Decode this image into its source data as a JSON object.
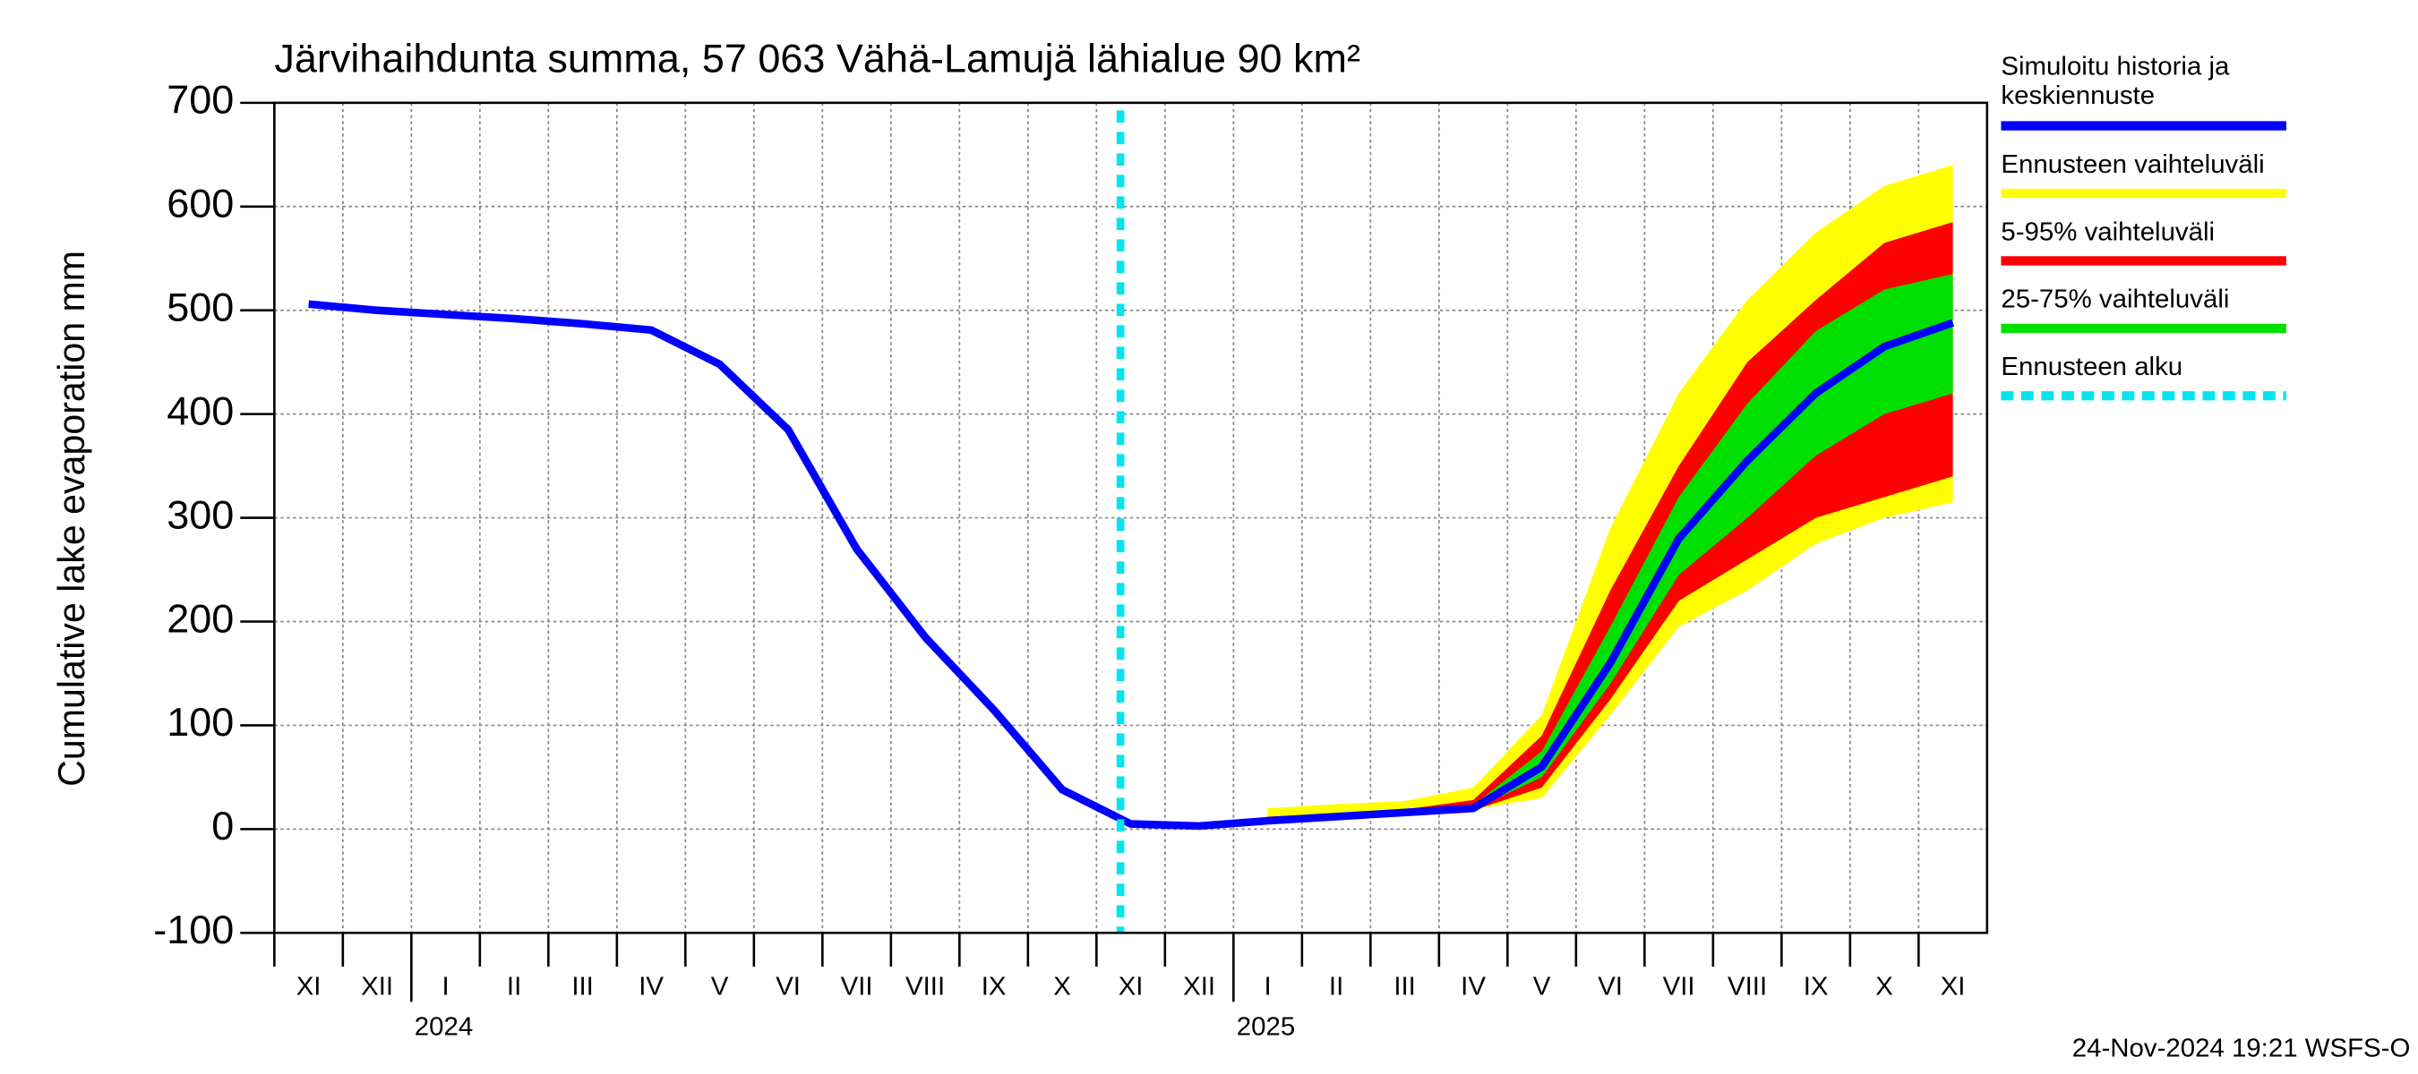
{
  "chart_data": {
    "type": "line",
    "title": "Järvihaihdunta summa, 57 063 Vähä-Lamujä lähialue 90 km²",
    "y_label": "Cumulative lake evaporation   mm",
    "footer": "24-Nov-2024 19:21 WSFS-O",
    "categories": [
      "XI",
      "XII",
      "I",
      "II",
      "III",
      "IV",
      "V",
      "VI",
      "VII",
      "VIII",
      "IX",
      "X",
      "XI",
      "XII",
      "I",
      "II",
      "III",
      "IV",
      "V",
      "VI",
      "VII",
      "VIII",
      "IX",
      "X",
      "XI"
    ],
    "years": [
      null,
      null,
      "2024",
      null,
      null,
      null,
      null,
      null,
      null,
      null,
      null,
      null,
      null,
      null,
      "2025",
      null,
      null,
      null,
      null,
      null,
      null,
      null,
      null,
      null,
      null
    ],
    "ylim": [
      -100,
      700
    ],
    "yticks": [
      -100,
      0,
      100,
      200,
      300,
      400,
      500,
      600,
      700
    ],
    "grid": true,
    "series": [
      {
        "name": "Ennusteen vaihteluväli",
        "color": "#ffff00",
        "lower": [
          null,
          null,
          null,
          null,
          null,
          null,
          null,
          null,
          null,
          null,
          null,
          null,
          null,
          null,
          8,
          12,
          16,
          19,
          30,
          110,
          195,
          230,
          275,
          300,
          315
        ],
        "values": [
          null,
          null,
          null,
          null,
          null,
          null,
          null,
          null,
          null,
          null,
          null,
          null,
          null,
          null,
          20,
          24,
          27,
          40,
          110,
          290,
          420,
          510,
          575,
          620,
          640
        ]
      },
      {
        "name": "5-95% vaihteluväli",
        "color": "#ff0000",
        "lower": [
          null,
          null,
          null,
          null,
          null,
          null,
          null,
          null,
          null,
          null,
          null,
          null,
          null,
          null,
          8,
          12,
          16,
          18,
          40,
          125,
          220,
          260,
          300,
          320,
          340
        ],
        "values": [
          null,
          null,
          null,
          null,
          null,
          null,
          null,
          null,
          null,
          null,
          null,
          null,
          null,
          null,
          12,
          15,
          19,
          28,
          90,
          230,
          350,
          450,
          510,
          565,
          585
        ]
      },
      {
        "name": "25-75% vaihteluväli",
        "color": "#00e000",
        "lower": [
          null,
          null,
          null,
          null,
          null,
          null,
          null,
          null,
          null,
          null,
          null,
          null,
          null,
          null,
          8,
          12,
          16,
          19,
          50,
          140,
          245,
          300,
          360,
          400,
          420
        ],
        "values": [
          null,
          null,
          null,
          null,
          null,
          null,
          null,
          null,
          null,
          null,
          null,
          null,
          null,
          null,
          10,
          13,
          17,
          23,
          75,
          195,
          320,
          410,
          480,
          520,
          535
        ]
      },
      {
        "name": "Simuloitu historia ja keskiennuste",
        "color": "#0000ff",
        "values": [
          506,
          500,
          496,
          492,
          487,
          481,
          448,
          385,
          270,
          185,
          115,
          38,
          5,
          3,
          8,
          12,
          16,
          20,
          60,
          160,
          280,
          355,
          420,
          465,
          488
        ]
      }
    ],
    "forecast_start": {
      "name": "Ennusteen alku",
      "color": "#00e5ee"
    }
  }
}
